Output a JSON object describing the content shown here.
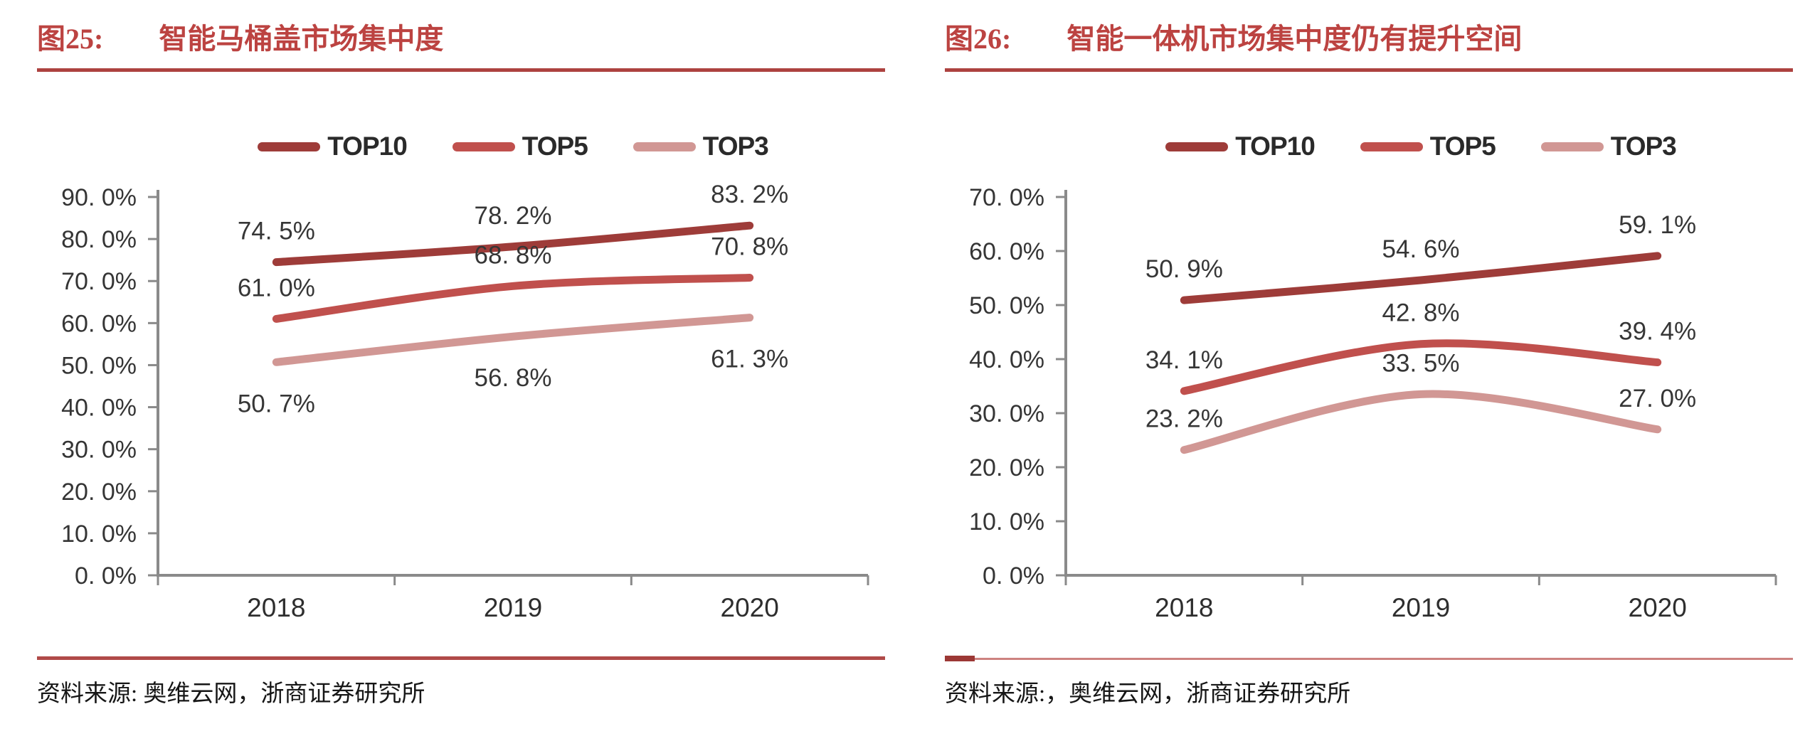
{
  "colors": {
    "title_red": "#bc4341",
    "title_underline_red": "#ad4240",
    "source_divider_red": "#b04a48",
    "axis_gray": "#8a8a8a",
    "top10_line": "#9e3c39",
    "top5_line": "#c0504d",
    "top3_line": "#d19794"
  },
  "chart_data": [
    {
      "figure_label": "图25:",
      "title": "智能马桶盖市场集中度",
      "type": "line",
      "categories": [
        "2018",
        "2019",
        "2020"
      ],
      "y_axis": {
        "min": 0,
        "max": 90,
        "step": 10,
        "grid": false,
        "tick_labels": [
          "90. 0%",
          "80. 0%",
          "70. 0%",
          "60. 0%",
          "50. 0%",
          "40. 0%",
          "30. 0%",
          "20. 0%",
          "10. 0%",
          "0. 0%"
        ]
      },
      "legend_position": "top",
      "series": [
        {
          "name": "TOP10",
          "color": "#9e3c39",
          "values": [
            74.5,
            78.2,
            83.2
          ],
          "labels": [
            "74. 5%",
            "78. 2%",
            "83. 2%"
          ],
          "label_position": "above"
        },
        {
          "name": "TOP5",
          "color": "#c0504d",
          "values": [
            61.0,
            68.8,
            70.8
          ],
          "labels": [
            "61. 0%",
            "68. 8%",
            "70. 8%"
          ],
          "label_position": "above"
        },
        {
          "name": "TOP3",
          "color": "#d19794",
          "values": [
            50.7,
            56.8,
            61.3
          ],
          "labels": [
            "50. 7%",
            "56. 8%",
            "61. 3%"
          ],
          "label_position": "below"
        }
      ],
      "source": "资料来源: 奥维云网，浙商证券研究所"
    },
    {
      "figure_label": "图26:",
      "title": "智能一体机市场集中度仍有提升空间",
      "type": "line",
      "categories": [
        "2018",
        "2019",
        "2020"
      ],
      "y_axis": {
        "min": 0,
        "max": 70,
        "step": 10,
        "grid": false,
        "tick_labels": [
          "70. 0%",
          "60. 0%",
          "50. 0%",
          "40. 0%",
          "30. 0%",
          "20. 0%",
          "10. 0%",
          "0. 0%"
        ]
      },
      "legend_position": "top",
      "series": [
        {
          "name": "TOP10",
          "color": "#9e3c39",
          "values": [
            50.9,
            54.6,
            59.1
          ],
          "labels": [
            "50. 9%",
            "54. 6%",
            "59. 1%"
          ],
          "label_position": "above"
        },
        {
          "name": "TOP5",
          "color": "#c0504d",
          "values": [
            34.1,
            42.8,
            39.4
          ],
          "labels": [
            "34. 1%",
            "42. 8%",
            "39. 4%"
          ],
          "label_position": "above"
        },
        {
          "name": "TOP3",
          "color": "#d19794",
          "values": [
            23.2,
            33.5,
            27.0
          ],
          "labels": [
            "23. 2%",
            "33. 5%",
            "27. 0%"
          ],
          "label_position": "above"
        }
      ],
      "source": "资料来源:，奥维云网，浙商证券研究所"
    }
  ]
}
